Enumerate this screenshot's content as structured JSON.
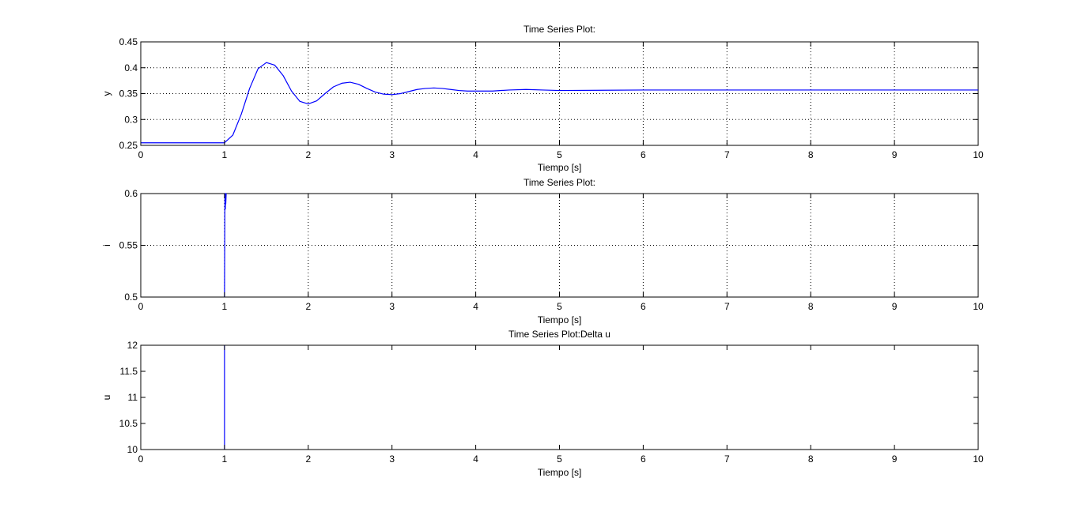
{
  "figure": {
    "background": "#ffffff"
  },
  "chart_data": [
    {
      "type": "line",
      "title": "Time Series Plot:",
      "xlabel": "Tiempo [s]",
      "ylabel": "y",
      "xlim": [
        0,
        10
      ],
      "ylim": [
        0.25,
        0.45
      ],
      "xticks": [
        0,
        1,
        2,
        3,
        4,
        5,
        6,
        7,
        8,
        9,
        10
      ],
      "yticks": [
        0.25,
        0.3,
        0.35,
        0.4,
        0.45
      ],
      "xtick_labels": [
        "0",
        "1",
        "2",
        "3",
        "4",
        "5",
        "6",
        "7",
        "8",
        "9",
        "10"
      ],
      "ytick_labels": [
        "0.25",
        "0.3",
        "0.35",
        "0.4",
        "0.45"
      ],
      "grid": true,
      "line_color": "#0000ff",
      "series": [
        {
          "x": [
            0,
            1.0,
            1.1,
            1.2,
            1.3,
            1.4,
            1.5,
            1.6,
            1.7,
            1.8,
            1.9,
            2.0,
            2.1,
            2.2,
            2.3,
            2.4,
            2.5,
            2.6,
            2.7,
            2.8,
            2.9,
            3.0,
            3.1,
            3.2,
            3.3,
            3.4,
            3.5,
            3.6,
            3.7,
            3.8,
            3.9,
            4.0,
            4.2,
            4.4,
            4.6,
            4.8,
            5.0,
            6.0,
            7.0,
            8.0,
            9.0,
            10.0
          ],
          "y": [
            0.255,
            0.255,
            0.27,
            0.31,
            0.36,
            0.398,
            0.41,
            0.405,
            0.385,
            0.355,
            0.335,
            0.33,
            0.336,
            0.35,
            0.363,
            0.37,
            0.372,
            0.368,
            0.36,
            0.353,
            0.349,
            0.348,
            0.35,
            0.354,
            0.358,
            0.36,
            0.361,
            0.36,
            0.358,
            0.356,
            0.355,
            0.355,
            0.355,
            0.357,
            0.358,
            0.357,
            0.356,
            0.357,
            0.357,
            0.357,
            0.357,
            0.357
          ]
        }
      ]
    },
    {
      "type": "line",
      "title": "Time Series Plot:",
      "xlabel": "Tiempo [s]",
      "ylabel": "i",
      "xlim": [
        0,
        10
      ],
      "ylim": [
        0.5,
        0.6
      ],
      "xticks": [
        0,
        1,
        2,
        3,
        4,
        5,
        6,
        7,
        8,
        9,
        10
      ],
      "yticks": [
        0.5,
        0.55,
        0.6
      ],
      "xtick_labels": [
        "0",
        "1",
        "2",
        "3",
        "4",
        "5",
        "6",
        "7",
        "8",
        "9",
        "10"
      ],
      "ytick_labels": [
        "0.5",
        "0.55",
        "0.6"
      ],
      "grid": true,
      "line_color": "#0000ff",
      "series": [
        {
          "x": [
            1.0,
            1.005,
            1.01,
            1.012,
            1.015,
            1.02
          ],
          "y": [
            0.5,
            0.6,
            0.585,
            0.6,
            0.59,
            0.6
          ]
        }
      ]
    },
    {
      "type": "line",
      "title": "Time Series Plot:Delta u",
      "xlabel": "Tiempo [s]",
      "ylabel": "u",
      "xlim": [
        0,
        10
      ],
      "ylim": [
        10,
        12
      ],
      "xticks": [
        0,
        1,
        2,
        3,
        4,
        5,
        6,
        7,
        8,
        9,
        10
      ],
      "yticks": [
        10,
        10.5,
        11,
        11.5,
        12
      ],
      "xtick_labels": [
        "0",
        "1",
        "2",
        "3",
        "4",
        "5",
        "6",
        "7",
        "8",
        "9",
        "10"
      ],
      "ytick_labels": [
        "10",
        "10.5",
        "11",
        "11.5",
        "12"
      ],
      "grid": false,
      "line_color": "#0000ff",
      "series": [
        {
          "x": [
            1.0,
            1.0
          ],
          "y": [
            10,
            12
          ]
        }
      ]
    }
  ]
}
